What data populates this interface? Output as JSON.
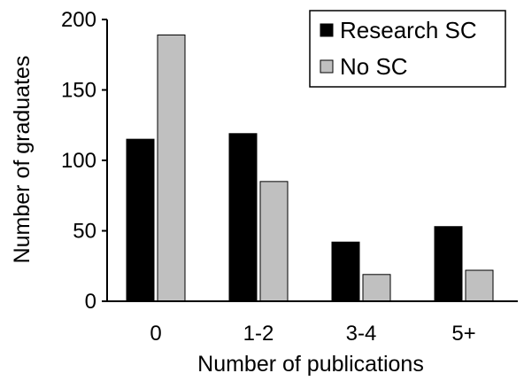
{
  "chart_data": {
    "type": "bar",
    "categories": [
      "0",
      "1-2",
      "3-4",
      "5+"
    ],
    "series": [
      {
        "name": "Research SC",
        "values": [
          115,
          119,
          42,
          53
        ],
        "color": "#000000"
      },
      {
        "name": "No SC",
        "values": [
          189,
          85,
          19,
          22
        ],
        "color": "#c0c0c0"
      }
    ],
    "xlabel": "Number of publications",
    "ylabel": "Number of graduates",
    "ylim": [
      0,
      200
    ],
    "yticks": [
      "0",
      "50",
      "100",
      "150",
      "200"
    ],
    "grid": false,
    "legend_position": "top-right"
  }
}
